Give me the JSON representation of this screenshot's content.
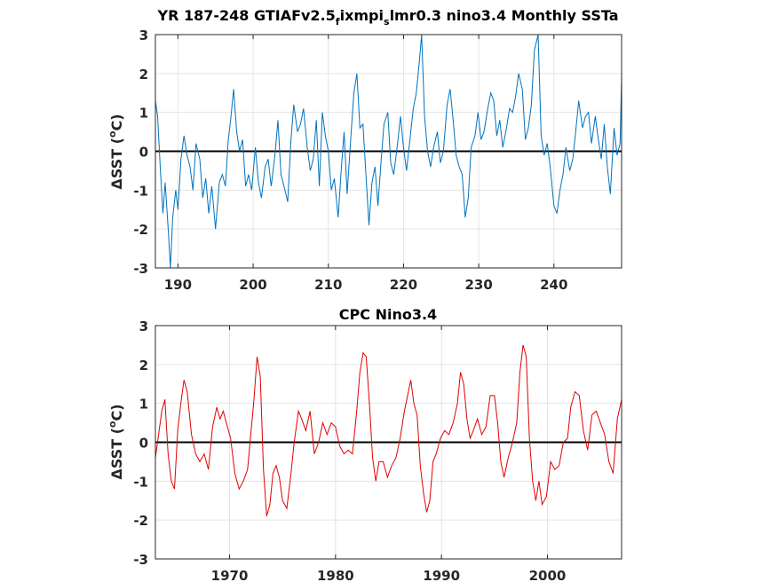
{
  "chart_data": [
    {
      "type": "line",
      "title": "YR 187-248 GTIAFv2.5",
      "title_sub1": "f",
      "title_mid": "ixmpi",
      "title_sub2": "s",
      "title_end": "lmr0.3 nino3.4 Monthly SSTa",
      "ylabel_prefix": "ΔSST (",
      "ylabel_sup": "o",
      "ylabel_suffix": "C)",
      "xlim": [
        187,
        249
      ],
      "ylim": [
        -3,
        3
      ],
      "xticks": [
        "190",
        "200",
        "210",
        "220",
        "230",
        "240"
      ],
      "xtick_values": [
        190,
        200,
        210,
        220,
        230,
        240
      ],
      "yticks": [
        "-3",
        "-2",
        "-1",
        "0",
        "1",
        "2",
        "3"
      ],
      "ytick_values": [
        -3,
        -2,
        -1,
        0,
        1,
        2,
        3
      ],
      "grid": true,
      "zero_line": true,
      "series": [
        {
          "color": "#0072BD",
          "x": [
            187.0,
            187.3,
            187.7,
            188.0,
            188.3,
            188.7,
            189.0,
            189.3,
            189.7,
            190.0,
            190.4,
            190.8,
            191.2,
            191.6,
            192.0,
            192.4,
            192.9,
            193.3,
            193.7,
            194.1,
            194.5,
            195.0,
            195.5,
            195.9,
            196.3,
            196.7,
            197.0,
            197.4,
            197.8,
            198.2,
            198.6,
            199.0,
            199.4,
            199.8,
            200.3,
            200.7,
            201.1,
            201.6,
            202.0,
            202.4,
            202.9,
            203.3,
            203.7,
            204.1,
            204.6,
            205.0,
            205.4,
            205.9,
            206.3,
            206.7,
            207.2,
            207.6,
            208.0,
            208.4,
            208.8,
            209.2,
            209.6,
            210.0,
            210.4,
            210.8,
            211.3,
            211.7,
            212.1,
            212.5,
            213.0,
            213.4,
            213.8,
            214.2,
            214.6,
            215.0,
            215.4,
            215.8,
            216.2,
            216.6,
            217.0,
            217.4,
            217.9,
            218.3,
            218.7,
            219.2,
            219.6,
            220.0,
            220.4,
            220.9,
            221.3,
            221.7,
            222.1,
            222.4,
            222.8,
            223.2,
            223.6,
            224.0,
            224.5,
            224.9,
            225.3,
            225.8,
            226.2,
            226.6,
            227.0,
            227.4,
            227.8,
            228.2,
            228.6,
            229.0,
            229.5,
            229.9,
            230.3,
            230.7,
            231.2,
            231.6,
            232.0,
            232.4,
            232.8,
            233.2,
            233.7,
            234.1,
            234.5,
            234.9,
            235.3,
            235.8,
            236.2,
            236.6,
            237.0,
            237.4,
            237.9,
            238.3,
            238.7,
            239.1,
            239.5,
            240.0,
            240.4,
            240.8,
            241.2,
            241.6,
            242.1,
            242.5,
            242.9,
            243.3,
            243.8,
            244.2,
            244.6,
            245.0,
            245.5,
            245.9,
            246.3,
            246.7,
            247.1,
            247.5,
            248.0,
            248.4,
            248.8,
            249.0
          ],
          "y": [
            1.3,
            0.9,
            -0.6,
            -1.6,
            -0.8,
            -2.0,
            -3.0,
            -1.7,
            -1.0,
            -1.5,
            -0.2,
            0.4,
            -0.1,
            -0.4,
            -1.0,
            0.2,
            -0.2,
            -1.2,
            -0.7,
            -1.6,
            -0.9,
            -2.0,
            -0.8,
            -0.6,
            -0.9,
            0.3,
            0.8,
            1.6,
            0.5,
            0.0,
            0.3,
            -0.9,
            -0.6,
            -1.0,
            0.1,
            -0.8,
            -1.2,
            -0.4,
            -0.2,
            -0.9,
            -0.1,
            0.8,
            -0.6,
            -0.9,
            -1.3,
            0.2,
            1.2,
            0.5,
            0.7,
            1.1,
            0.1,
            -0.5,
            -0.2,
            0.8,
            -0.9,
            1.0,
            0.4,
            0.0,
            -1.0,
            -0.7,
            -1.7,
            -0.5,
            0.5,
            -1.1,
            0.4,
            1.5,
            2.0,
            0.6,
            0.7,
            -0.6,
            -1.9,
            -0.8,
            -0.4,
            -1.4,
            -0.3,
            0.7,
            1.0,
            -0.3,
            -0.6,
            0.2,
            0.9,
            0.1,
            -0.5,
            0.4,
            1.1,
            1.5,
            2.3,
            3.0,
            0.9,
            0.0,
            -0.4,
            0.1,
            0.5,
            -0.3,
            0.0,
            1.2,
            1.6,
            0.8,
            -0.1,
            -0.4,
            -0.6,
            -1.7,
            -1.2,
            0.1,
            0.4,
            1.0,
            0.3,
            0.5,
            1.1,
            1.5,
            1.3,
            0.4,
            0.8,
            0.1,
            0.6,
            1.1,
            1.0,
            1.4,
            2.0,
            1.6,
            0.3,
            0.6,
            1.2,
            2.6,
            3.0,
            0.4,
            -0.1,
            0.2,
            -0.4,
            -1.4,
            -1.6,
            -1.0,
            -0.6,
            0.1,
            -0.5,
            -0.2,
            0.5,
            1.3,
            0.6,
            0.9,
            1.0,
            0.2,
            0.9,
            0.3,
            -0.2,
            0.7,
            -0.4,
            -1.1,
            0.6,
            -0.1,
            0.2,
            1.9
          ]
        }
      ]
    },
    {
      "type": "line",
      "title": "CPC Nino3.4",
      "ylabel_prefix": "ΔSST (",
      "ylabel_sup": "o",
      "ylabel_suffix": "C)",
      "xlim": [
        1963,
        2007
      ],
      "ylim": [
        -3,
        3
      ],
      "xticks": [
        "1970",
        "1980",
        "1990",
        "2000"
      ],
      "xtick_values": [
        1970,
        1980,
        1990,
        2000
      ],
      "yticks": [
        "-3",
        "-2",
        "-1",
        "0",
        "1",
        "2",
        "3"
      ],
      "ytick_values": [
        -3,
        -2,
        -1,
        0,
        1,
        2,
        3
      ],
      "grid": true,
      "zero_line": true,
      "series": [
        {
          "color": "#E00000",
          "x": [
            1963.0,
            1963.3,
            1963.6,
            1963.9,
            1964.2,
            1964.5,
            1964.8,
            1965.1,
            1965.4,
            1965.7,
            1966.0,
            1966.4,
            1966.8,
            1967.2,
            1967.6,
            1968.0,
            1968.4,
            1968.8,
            1969.1,
            1969.4,
            1969.8,
            1970.1,
            1970.5,
            1970.9,
            1971.3,
            1971.7,
            1972.0,
            1972.3,
            1972.6,
            1972.9,
            1973.2,
            1973.5,
            1973.8,
            1974.1,
            1974.4,
            1974.7,
            1975.0,
            1975.4,
            1975.8,
            1976.1,
            1976.5,
            1976.8,
            1977.2,
            1977.6,
            1978.0,
            1978.4,
            1978.8,
            1979.2,
            1979.6,
            1980.0,
            1980.4,
            1980.8,
            1981.2,
            1981.6,
            1982.0,
            1982.3,
            1982.6,
            1982.9,
            1983.2,
            1983.5,
            1983.8,
            1984.1,
            1984.5,
            1984.9,
            1985.3,
            1985.7,
            1986.1,
            1986.5,
            1986.8,
            1987.1,
            1987.4,
            1987.7,
            1988.0,
            1988.3,
            1988.6,
            1988.9,
            1989.2,
            1989.5,
            1989.9,
            1990.3,
            1990.7,
            1991.1,
            1991.5,
            1991.8,
            1992.1,
            1992.4,
            1992.7,
            1993.0,
            1993.4,
            1993.8,
            1994.2,
            1994.6,
            1995.0,
            1995.3,
            1995.6,
            1995.9,
            1996.3,
            1996.7,
            1997.1,
            1997.4,
            1997.7,
            1998.0,
            1998.3,
            1998.6,
            1998.9,
            1999.2,
            1999.5,
            1999.9,
            2000.3,
            2000.7,
            2001.1,
            2001.5,
            2001.9,
            2002.2,
            2002.6,
            2003.0,
            2003.4,
            2003.8,
            2004.2,
            2004.6,
            2005.0,
            2005.4,
            2005.8,
            2006.2,
            2006.6,
            2007.0
          ],
          "y": [
            -0.4,
            0.2,
            0.8,
            1.1,
            -0.3,
            -1.0,
            -1.2,
            0.3,
            1.0,
            1.6,
            1.3,
            0.2,
            -0.3,
            -0.5,
            -0.3,
            -0.7,
            0.4,
            0.9,
            0.6,
            0.8,
            0.4,
            0.1,
            -0.8,
            -1.2,
            -1.0,
            -0.7,
            0.2,
            1.1,
            2.2,
            1.7,
            -0.7,
            -1.9,
            -1.6,
            -0.8,
            -0.6,
            -0.9,
            -1.5,
            -1.7,
            -0.8,
            0.0,
            0.8,
            0.6,
            0.3,
            0.8,
            -0.3,
            0.0,
            0.5,
            0.2,
            0.5,
            0.4,
            -0.1,
            -0.3,
            -0.2,
            -0.3,
            0.8,
            1.8,
            2.3,
            2.2,
            1.0,
            -0.4,
            -1.0,
            -0.5,
            -0.5,
            -0.9,
            -0.6,
            -0.4,
            0.1,
            0.8,
            1.2,
            1.6,
            1.0,
            0.7,
            -0.6,
            -1.3,
            -1.8,
            -1.5,
            -0.5,
            -0.3,
            0.1,
            0.3,
            0.2,
            0.5,
            1.0,
            1.8,
            1.5,
            0.6,
            0.1,
            0.3,
            0.6,
            0.2,
            0.4,
            1.2,
            1.2,
            0.5,
            -0.5,
            -0.9,
            -0.4,
            0.0,
            0.5,
            1.8,
            2.5,
            2.2,
            0.1,
            -1.0,
            -1.5,
            -1.0,
            -1.6,
            -1.4,
            -0.5,
            -0.7,
            -0.6,
            0.0,
            0.1,
            0.9,
            1.3,
            1.2,
            0.3,
            -0.2,
            0.7,
            0.8,
            0.5,
            0.2,
            -0.5,
            -0.8,
            0.6,
            1.1
          ]
        }
      ]
    }
  ]
}
